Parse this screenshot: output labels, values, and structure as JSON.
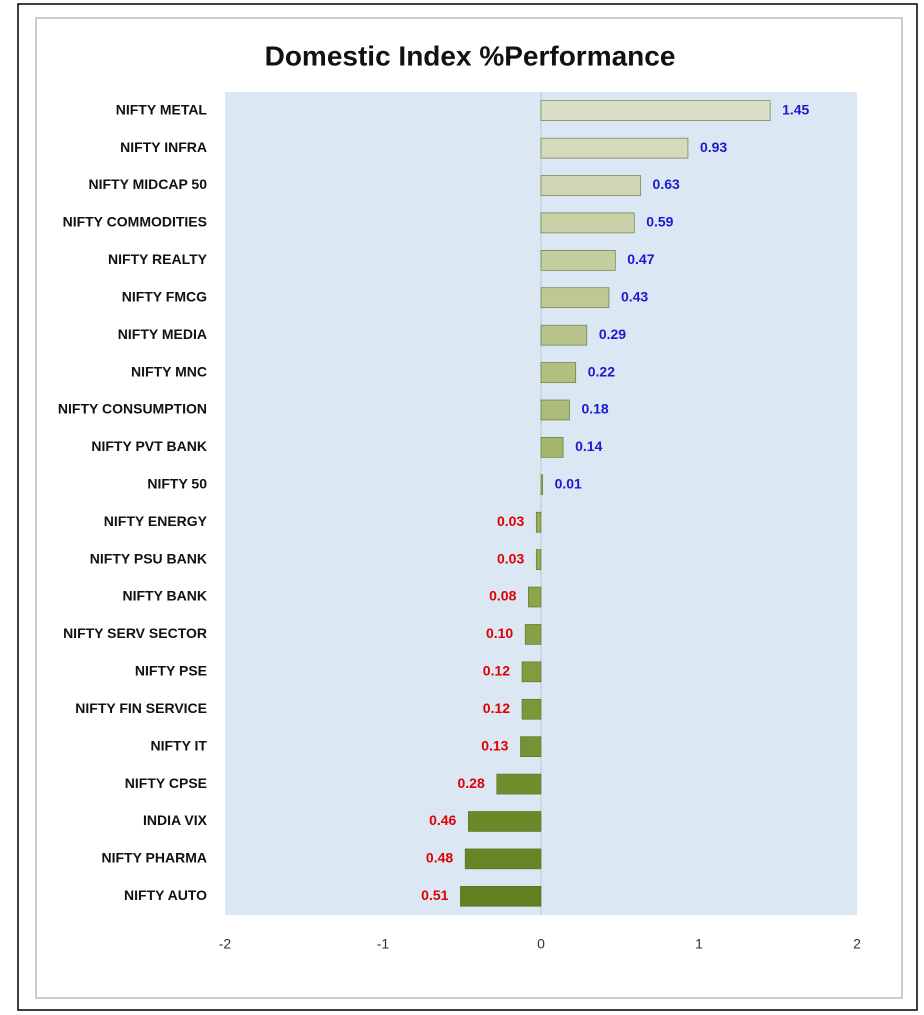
{
  "chart_data": {
    "type": "barh",
    "title": "Domestic Index %Performance",
    "categories": [
      "NIFTY METAL",
      "NIFTY INFRA",
      "NIFTY MIDCAP 50",
      "NIFTY COMMODITIES",
      "NIFTY REALTY",
      "NIFTY FMCG",
      "NIFTY MEDIA",
      "NIFTY MNC",
      "NIFTY CONSUMPTION",
      "NIFTY PVT BANK",
      "NIFTY 50",
      "NIFTY ENERGY",
      "NIFTY PSU BANK",
      "NIFTY BANK",
      "NIFTY SERV SECTOR",
      "NIFTY PSE",
      "NIFTY FIN SERVICE",
      "NIFTY IT",
      "NIFTY CPSE",
      "INDIA VIX",
      "NIFTY PHARMA",
      "NIFTY AUTO"
    ],
    "values": [
      1.45,
      0.93,
      0.63,
      0.59,
      0.47,
      0.43,
      0.29,
      0.22,
      0.18,
      0.14,
      0.01,
      -0.03,
      -0.03,
      -0.08,
      -0.1,
      -0.12,
      -0.12,
      -0.13,
      -0.28,
      -0.46,
      -0.48,
      -0.51
    ],
    "value_labels": [
      "1.45",
      "0.93",
      "0.63",
      "0.59",
      "0.47",
      "0.43",
      "0.29",
      "0.22",
      "0.18",
      "0.14",
      "0.01",
      "0.03",
      "0.03",
      "0.08",
      "0.10",
      "0.12",
      "0.12",
      "0.13",
      "0.28",
      "0.46",
      "0.48",
      "0.51"
    ],
    "colors": [
      "#dcdfc8",
      "#d6dabd",
      "#d0d6b3",
      "#cad1a9",
      "#c4cd9f",
      "#bec895",
      "#b8c48b",
      "#b2bf81",
      "#acbb77",
      "#a6b66d",
      "#a0b263",
      "#9aad5a",
      "#94a952",
      "#8ea44b",
      "#88a044",
      "#829b3e",
      "#7c9738",
      "#769233",
      "#718e2e",
      "#6c892a",
      "#678526",
      "#628022"
    ],
    "label_colors": {
      "positive": "#1a1acc",
      "negative": "#e00000"
    },
    "xlim": [
      -2,
      2
    ],
    "xticks": [
      -2,
      -1,
      0,
      1,
      2
    ],
    "grid": false
  }
}
